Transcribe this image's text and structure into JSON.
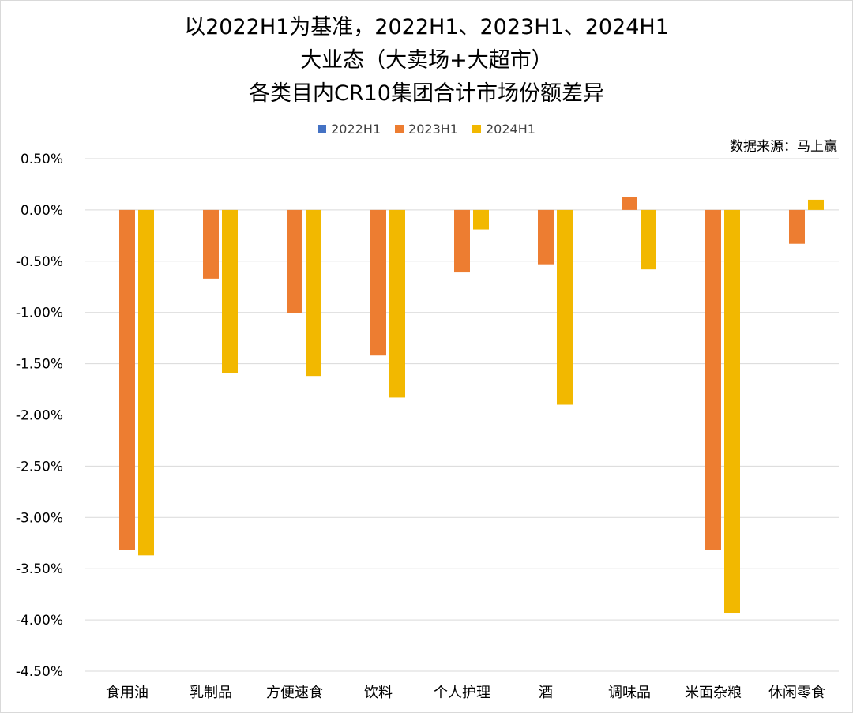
{
  "chart_data": {
    "type": "bar",
    "title_lines": [
      "以2022H1为基准，2022H1、2023H1、2024H1",
      "大业态（大卖场+大超市）",
      "各类目内CR10集团合计市场份额差异"
    ],
    "source_note": "数据来源：马上赢",
    "categories": [
      "食用油",
      "乳制品",
      "方便速食",
      "饮料",
      "个人护理",
      "酒",
      "调味品",
      "米面杂粮",
      "休闲零食"
    ],
    "series": [
      {
        "name": "2022H1",
        "color": "#4472C4",
        "values": [
          0,
          0,
          0,
          0,
          0,
          0,
          0,
          0,
          0
        ]
      },
      {
        "name": "2023H1",
        "color": "#ED7D31",
        "values": [
          -3.32,
          -0.67,
          -1.01,
          -1.42,
          -0.61,
          -0.53,
          0.13,
          -3.32,
          -0.33
        ]
      },
      {
        "name": "2024H1",
        "color": "#F2B800",
        "values": [
          -3.37,
          -1.59,
          -1.62,
          -1.83,
          -0.19,
          -1.9,
          -0.58,
          -3.93,
          0.1
        ]
      }
    ],
    "y_ticks": [
      "0.50%",
      "0.00%",
      "-0.50%",
      "-1.00%",
      "-1.50%",
      "-2.00%",
      "-2.50%",
      "-3.00%",
      "-3.50%",
      "-4.00%",
      "-4.50%"
    ],
    "ylim": [
      -4.5,
      0.5
    ],
    "unit": "%",
    "grid": true,
    "legend_position": "top-center"
  }
}
